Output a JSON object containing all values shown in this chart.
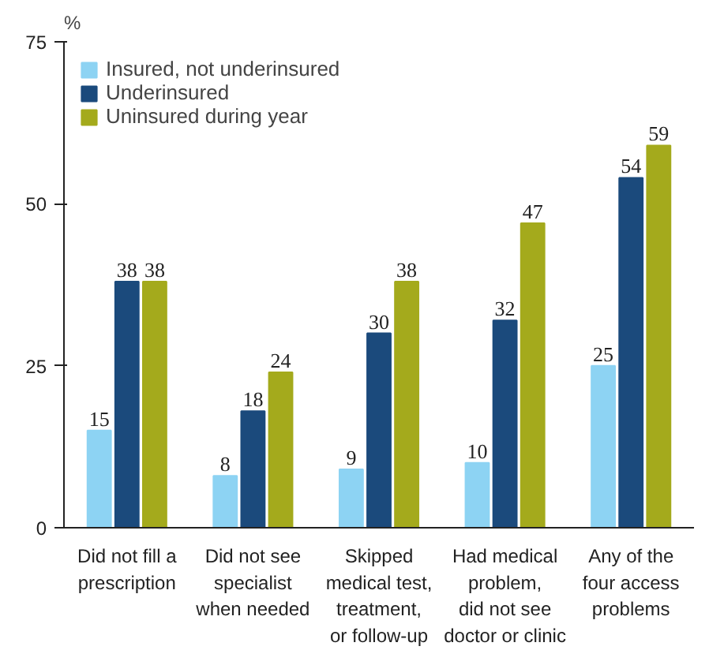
{
  "chart_data": {
    "type": "bar",
    "ylabel": "%",
    "categories": [
      "Did not fill a\nprescription",
      "Did not see\nspecialist\nwhen needed",
      "Skipped\nmedical test,\ntreatment,\nor follow-up",
      "Had medical\nproblem,\ndid not see\ndoctor or clinic",
      "Any of the\nfour access\nproblems"
    ],
    "series": [
      {
        "name": "Insured, not underinsured",
        "color": "#8dd3f3",
        "values": [
          15,
          8,
          9,
          10,
          25
        ]
      },
      {
        "name": "Underinsured",
        "color": "#1b4a7c",
        "values": [
          38,
          18,
          30,
          32,
          54
        ]
      },
      {
        "name": "Uninsured during year",
        "color": "#a4aa1c",
        "values": [
          38,
          24,
          38,
          47,
          59
        ]
      }
    ],
    "ylim": [
      0,
      75
    ],
    "yticks": [
      0,
      25,
      50,
      75
    ],
    "data_labels": true,
    "grid": false,
    "legend": "top left"
  }
}
